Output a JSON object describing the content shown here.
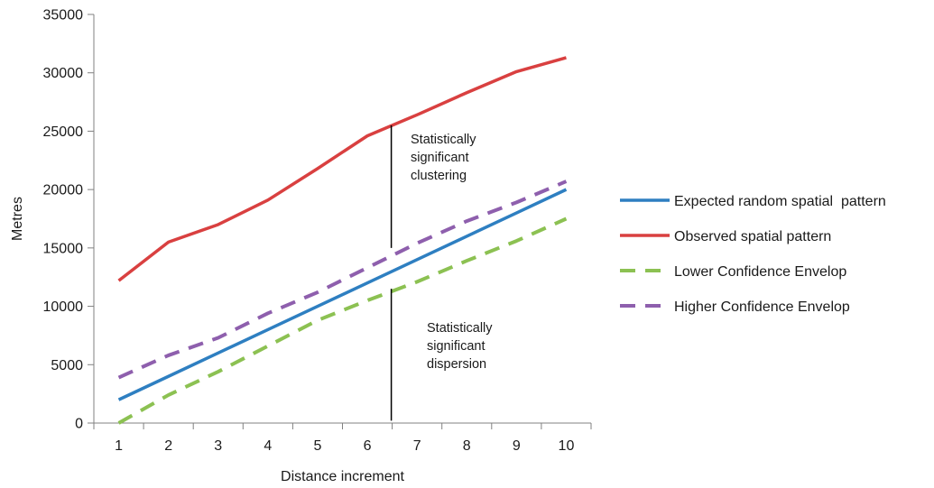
{
  "chart_data": {
    "type": "line",
    "title": "",
    "xlabel": "Distance increment",
    "ylabel": "Metres",
    "x": [
      1,
      2,
      3,
      4,
      5,
      6,
      7,
      8,
      9,
      10
    ],
    "xlim": [
      0.5,
      10.5
    ],
    "ylim": [
      0,
      35000
    ],
    "yticks": [
      0,
      5000,
      10000,
      15000,
      20000,
      25000,
      30000,
      35000
    ],
    "grid": false,
    "legend_position": "right",
    "series": [
      {
        "name": "Expected random spatial  pattern",
        "values": [
          2000,
          4000,
          6000,
          8000,
          10000,
          12000,
          14000,
          16000,
          18000,
          20000
        ],
        "color": "#2e7fc1",
        "style": "solid"
      },
      {
        "name": "Observed spatial pattern",
        "values": [
          12200,
          15500,
          17000,
          19100,
          21800,
          24600,
          26400,
          28300,
          30100,
          31300
        ],
        "color": "#d94040",
        "style": "solid"
      },
      {
        "name": "Lower Confidence Envelop",
        "values": [
          0,
          2400,
          4400,
          6600,
          8800,
          10500,
          12100,
          13900,
          15600,
          17500
        ],
        "color": "#8cc152",
        "style": "dashed"
      },
      {
        "name": "Higher Confidence Envelop",
        "values": [
          3900,
          5800,
          7300,
          9400,
          11200,
          13300,
          15400,
          17300,
          18900,
          20700
        ],
        "color": "#8e5fad",
        "style": "dashed"
      }
    ],
    "annotations": [
      {
        "id": "clustering",
        "lines": [
          "Statistically",
          "significant",
          "clustering"
        ],
        "marker_x": 6.5,
        "marker_y": [
          15000,
          25500
        ]
      },
      {
        "id": "dispersion",
        "lines": [
          "Statistically",
          "significant",
          "dispersion"
        ],
        "marker_x": 6.5,
        "marker_y": [
          200,
          11500
        ]
      }
    ]
  }
}
